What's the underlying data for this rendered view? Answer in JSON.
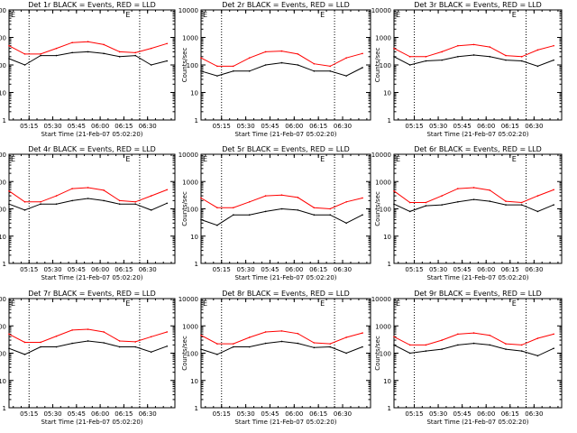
{
  "figure": {
    "x_tick_labels": [
      "05:15",
      "05:30",
      "05:45",
      "06:00",
      "06:15",
      "06:30"
    ],
    "y_tick_labels": [
      "1",
      "10",
      "100",
      "1000",
      "10000"
    ],
    "ylabel": "Counts/sec",
    "xlabel": "Start Time (21-Feb-07 05:02:20)",
    "flag_mark": "E",
    "colors": {
      "events": "#000000",
      "lld": "#ff0000",
      "axes": "#000000"
    }
  },
  "chart_data": [
    {
      "type": "line",
      "title": "Det 1r BLACK = Events, RED = LLD",
      "xlabel": "Start Time (21-Feb-07 05:02:20)",
      "ylabel": "Counts/sec",
      "x_tick_labels": [
        "05:15",
        "05:30",
        "05:45",
        "06:00",
        "06:15",
        "06:30"
      ],
      "ylim": [
        1,
        10000
      ],
      "yscale": "log",
      "x_minutes": [
        0,
        10,
        20,
        30,
        40,
        50,
        60,
        70,
        80,
        90,
        100
      ],
      "eclipse_bounds_minutes": [
        12.7,
        82.7
      ],
      "series": [
        {
          "name": "Events",
          "color": "#000000",
          "values": [
            170,
            100,
            220,
            220,
            280,
            300,
            260,
            200,
            220,
            100,
            140
          ]
        },
        {
          "name": "LLD",
          "color": "#ff0000",
          "values": [
            500,
            250,
            250,
            400,
            650,
            700,
            550,
            300,
            280,
            400,
            600
          ]
        }
      ]
    },
    {
      "type": "line",
      "title": "Det 2r BLACK = Events, RED = LLD",
      "xlabel": "Start Time (21-Feb-07 05:02:20)",
      "ylabel": "Counts/sec",
      "x_tick_labels": [
        "05:15",
        "05:30",
        "05:45",
        "06:00",
        "06:15",
        "06:30"
      ],
      "ylim": [
        1,
        10000
      ],
      "yscale": "log",
      "x_minutes": [
        0,
        10,
        20,
        30,
        40,
        50,
        60,
        70,
        80,
        90,
        100
      ],
      "eclipse_bounds_minutes": [
        12.7,
        82.7
      ],
      "series": [
        {
          "name": "Events",
          "color": "#000000",
          "values": [
            60,
            40,
            60,
            60,
            100,
            120,
            100,
            60,
            60,
            40,
            80
          ]
        },
        {
          "name": "LLD",
          "color": "#ff0000",
          "values": [
            180,
            90,
            90,
            180,
            300,
            320,
            250,
            110,
            90,
            180,
            260
          ]
        }
      ]
    },
    {
      "type": "line",
      "title": "Det 3r BLACK = Events, RED = LLD",
      "xlabel": "Start Time (21-Feb-07 05:02:20)",
      "ylabel": "Counts/sec",
      "x_tick_labels": [
        "05:15",
        "05:30",
        "05:45",
        "06:00",
        "06:15",
        "06:30"
      ],
      "ylim": [
        1,
        10000
      ],
      "yscale": "log",
      "x_minutes": [
        0,
        10,
        20,
        30,
        40,
        50,
        60,
        70,
        80,
        90,
        100
      ],
      "eclipse_bounds_minutes": [
        12.7,
        82.7
      ],
      "series": [
        {
          "name": "Events",
          "color": "#000000",
          "values": [
            200,
            100,
            140,
            150,
            200,
            230,
            200,
            150,
            140,
            90,
            150
          ]
        },
        {
          "name": "LLD",
          "color": "#ff0000",
          "values": [
            400,
            200,
            200,
            300,
            500,
            550,
            450,
            220,
            200,
            350,
            500
          ]
        }
      ]
    },
    {
      "type": "line",
      "title": "Det 4r BLACK = Events, RED = LLD",
      "xlabel": "Start Time (21-Feb-07 05:02:20)",
      "ylabel": "Counts/sec",
      "x_tick_labels": [
        "05:15",
        "05:30",
        "05:45",
        "06:00",
        "06:15",
        "06:30"
      ],
      "ylim": [
        1,
        10000
      ],
      "yscale": "log",
      "x_minutes": [
        0,
        10,
        20,
        30,
        40,
        50,
        60,
        70,
        80,
        90,
        100
      ],
      "eclipse_bounds_minutes": [
        12.7,
        82.7
      ],
      "series": [
        {
          "name": "Events",
          "color": "#000000",
          "values": [
            150,
            90,
            150,
            150,
            200,
            240,
            200,
            150,
            150,
            90,
            160
          ]
        },
        {
          "name": "LLD",
          "color": "#ff0000",
          "values": [
            450,
            180,
            180,
            300,
            550,
            600,
            480,
            200,
            180,
            300,
            500
          ]
        }
      ]
    },
    {
      "type": "line",
      "title": "Det 5r BLACK = Events, RED = LLD",
      "xlabel": "Start Time (21-Feb-07 05:02:20)",
      "ylabel": "Counts/sec",
      "x_tick_labels": [
        "05:15",
        "05:30",
        "05:45",
        "06:00",
        "06:15",
        "06:30"
      ],
      "ylim": [
        1,
        10000
      ],
      "yscale": "log",
      "x_minutes": [
        0,
        10,
        20,
        30,
        40,
        50,
        60,
        70,
        80,
        90,
        100
      ],
      "eclipse_bounds_minutes": [
        12.7,
        82.7
      ],
      "series": [
        {
          "name": "Events",
          "color": "#000000",
          "values": [
            40,
            25,
            60,
            60,
            80,
            100,
            90,
            60,
            60,
            30,
            60
          ]
        },
        {
          "name": "LLD",
          "color": "#ff0000",
          "values": [
            250,
            110,
            110,
            180,
            300,
            320,
            260,
            110,
            100,
            180,
            250
          ]
        }
      ]
    },
    {
      "type": "line",
      "title": "Det 6r BLACK = Events, RED = LLD",
      "xlabel": "Start Time (21-Feb-07 05:02:20)",
      "ylabel": "Counts/sec",
      "x_tick_labels": [
        "05:15",
        "05:30",
        "05:45",
        "06:00",
        "06:15",
        "06:30"
      ],
      "ylim": [
        1,
        10000
      ],
      "yscale": "log",
      "x_minutes": [
        0,
        10,
        20,
        30,
        40,
        50,
        60,
        70,
        80,
        90,
        100
      ],
      "eclipse_bounds_minutes": [
        12.7,
        82.7
      ],
      "series": [
        {
          "name": "Events",
          "color": "#000000",
          "values": [
            150,
            80,
            130,
            140,
            180,
            220,
            190,
            140,
            140,
            80,
            140
          ]
        },
        {
          "name": "LLD",
          "color": "#ff0000",
          "values": [
            450,
            170,
            170,
            300,
            550,
            600,
            480,
            190,
            170,
            300,
            500
          ]
        }
      ]
    },
    {
      "type": "line",
      "title": "Det 7r BLACK = Events, RED = LLD",
      "xlabel": "Start Time (21-Feb-07 05:02:20)",
      "ylabel": "Counts/sec",
      "x_tick_labels": [
        "05:15",
        "05:30",
        "05:45",
        "06:00",
        "06:15",
        "06:30"
      ],
      "ylim": [
        1,
        10000
      ],
      "yscale": "log",
      "x_minutes": [
        0,
        10,
        20,
        30,
        40,
        50,
        60,
        70,
        80,
        90,
        100
      ],
      "eclipse_bounds_minutes": [
        12.7,
        82.7
      ],
      "series": [
        {
          "name": "Events",
          "color": "#000000",
          "values": [
            150,
            90,
            170,
            170,
            230,
            280,
            240,
            170,
            170,
            110,
            180
          ]
        },
        {
          "name": "LLD",
          "color": "#ff0000",
          "values": [
            500,
            250,
            250,
            420,
            700,
            750,
            600,
            280,
            260,
            400,
            600
          ]
        }
      ]
    },
    {
      "type": "line",
      "title": "Det 8r BLACK = Events, RED = LLD",
      "xlabel": "Start Time (21-Feb-07 05:02:20)",
      "ylabel": "Counts/sec",
      "x_tick_labels": [
        "05:15",
        "05:30",
        "05:45",
        "06:00",
        "06:15",
        "06:30"
      ],
      "ylim": [
        1,
        10000
      ],
      "yscale": "log",
      "x_minutes": [
        0,
        10,
        20,
        30,
        40,
        50,
        60,
        70,
        80,
        90,
        100
      ],
      "eclipse_bounds_minutes": [
        12.7,
        82.7
      ],
      "series": [
        {
          "name": "Events",
          "color": "#000000",
          "values": [
            140,
            90,
            170,
            170,
            230,
            270,
            230,
            160,
            170,
            100,
            170
          ]
        },
        {
          "name": "LLD",
          "color": "#ff0000",
          "values": [
            450,
            220,
            220,
            380,
            600,
            650,
            520,
            240,
            220,
            380,
            550
          ]
        }
      ]
    },
    {
      "type": "line",
      "title": "Det 9r BLACK = Events, RED = LLD",
      "xlabel": "Start Time (21-Feb-07 05:02:20)",
      "ylabel": "Counts/sec",
      "x_tick_labels": [
        "05:15",
        "05:30",
        "05:45",
        "06:00",
        "06:15",
        "06:30"
      ],
      "ylim": [
        1,
        10000
      ],
      "yscale": "log",
      "x_minutes": [
        0,
        10,
        20,
        30,
        40,
        50,
        60,
        70,
        80,
        90,
        100
      ],
      "eclipse_bounds_minutes": [
        12.7,
        82.7
      ],
      "series": [
        {
          "name": "Events",
          "color": "#000000",
          "values": [
            200,
            100,
            120,
            140,
            200,
            230,
            200,
            140,
            120,
            80,
            150
          ]
        },
        {
          "name": "LLD",
          "color": "#ff0000",
          "values": [
            400,
            200,
            200,
            300,
            500,
            550,
            450,
            220,
            200,
            350,
            500
          ]
        }
      ]
    }
  ]
}
